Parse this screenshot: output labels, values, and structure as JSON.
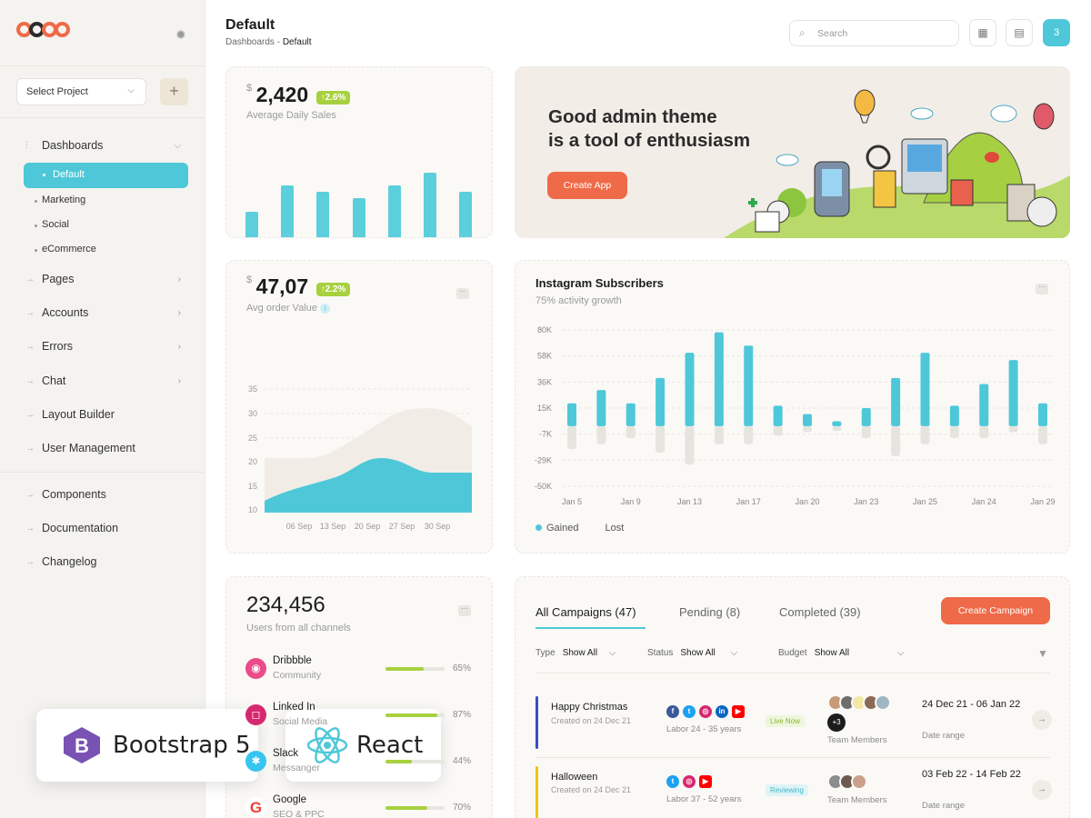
{
  "sidebar": {
    "project_select": "Select Project",
    "nav_top": [
      {
        "label": "Dashboards"
      },
      {
        "label": "Pages"
      },
      {
        "label": "Accounts"
      },
      {
        "label": "Errors"
      },
      {
        "label": "Chat"
      },
      {
        "label": "Layout Builder"
      },
      {
        "label": "User Management"
      }
    ],
    "dashboards_sub": [
      "Default",
      "Marketing",
      "Social",
      "eCommerce"
    ],
    "nav_bottom": [
      {
        "label": "Components"
      },
      {
        "label": "Documentation"
      },
      {
        "label": "Changelog"
      }
    ]
  },
  "header": {
    "title": "Default",
    "breadcrumb": [
      "Dashboards",
      "-",
      "Default"
    ],
    "search_placeholder": "Search",
    "notification_count": "3"
  },
  "sales_card": {
    "currency": "$",
    "value": "2,420",
    "change": "↑2.6%",
    "label": "Average Daily Sales",
    "bar_fractions": [
      0.39,
      0.8,
      0.71,
      0.6,
      0.8,
      1.0,
      0.71
    ]
  },
  "order_card": {
    "currency": "$",
    "value": "47,07",
    "change": "↑2.2%",
    "label": "Avg order Value",
    "y_ticks": [
      "35",
      "30",
      "25",
      "20",
      "15",
      "10"
    ],
    "x_ticks": [
      "06 Sep",
      "13 Sep",
      "20 Sep",
      "27 Sep",
      "30 Sep"
    ]
  },
  "banner": {
    "line1": "Good admin theme",
    "line2": "is a tool of enthusiasm",
    "button": "Create App"
  },
  "instagram": {
    "title": "Instagram Subscribers",
    "subtitle": "75% activity growth",
    "legend_gained": "Gained",
    "legend_lost": "Lost"
  },
  "chart_data": {
    "type": "bar",
    "title": "Instagram Subscribers",
    "subtitle": "75% activity growth",
    "y_ticks": [
      "80K",
      "58K",
      "36K",
      "15K",
      "-7K",
      "-29K",
      "-50K"
    ],
    "ylim": [
      -50,
      80
    ],
    "x_ticks": [
      "Jan 5",
      "Jan 9",
      "Jan 13",
      "Jan 17",
      "Jan 20",
      "Jan 23",
      "Jan 25",
      "Jan 24",
      "Jan 29"
    ],
    "series": [
      {
        "name": "Gained",
        "color": "#4ec8d9",
        "values": [
          19,
          30,
          19,
          40,
          61,
          78,
          67,
          17,
          10,
          4,
          15,
          40,
          61,
          17,
          35,
          55,
          19
        ]
      },
      {
        "name": "Lost",
        "color": "#e6e4df",
        "values": [
          -19,
          -15,
          -10,
          -22,
          -32,
          -15,
          -15,
          -8,
          -5,
          -4,
          -10,
          -25,
          -15,
          -10,
          -10,
          -5,
          -15
        ]
      }
    ]
  },
  "users_card": {
    "value": "234,456",
    "label": "Users from all channels",
    "channels": [
      {
        "name": "Dribbble",
        "sub": "Community",
        "pct": "65%",
        "fill": 0.65,
        "color": "#e94c89",
        "glyph": "◉"
      },
      {
        "name": "Linked In",
        "sub": "Social Media",
        "pct": "87%",
        "fill": 0.87,
        "color": "#d6286e",
        "glyph": "◻"
      },
      {
        "name": "Slack",
        "sub": "Messanger",
        "pct": "44%",
        "fill": 0.44,
        "color": "#36c5f0",
        "glyph": "✱"
      },
      {
        "name": "Google",
        "sub": "SEO & PPC",
        "pct": "70%",
        "fill": 0.7,
        "color": "#ea4335",
        "glyph": "G"
      }
    ]
  },
  "campaigns": {
    "tabs": [
      "All Campaigns (47)",
      "Pending (8)",
      "Completed (39)"
    ],
    "create_button": "Create Campaign",
    "filters": [
      {
        "label": "Type",
        "value": "Show All"
      },
      {
        "label": "Status",
        "value": "Show All"
      },
      {
        "label": "Budget",
        "value": "Show All"
      }
    ],
    "rows": [
      {
        "name": "Happy Christmas",
        "created": "Created on 24 Dec 21",
        "labor": "Labor 24 - 35 years",
        "status": "Live Now",
        "extra": "+3",
        "team": "Team Members",
        "range": "24 Dec 21 - 06 Jan 22",
        "range_label": "Date range",
        "bar_color": "#3d4cc7"
      },
      {
        "name": "Halloween",
        "created": "Created on 24 Dec 21",
        "labor": "Labor 37 - 52 years",
        "status": "Reviewing",
        "team": "Team Members",
        "range": "03 Feb 22 - 14 Feb 22",
        "range_label": "Date range",
        "bar_color": "#f0c419"
      }
    ]
  },
  "overlay_badges": {
    "bootstrap": "Bootstrap 5",
    "react": "React"
  }
}
